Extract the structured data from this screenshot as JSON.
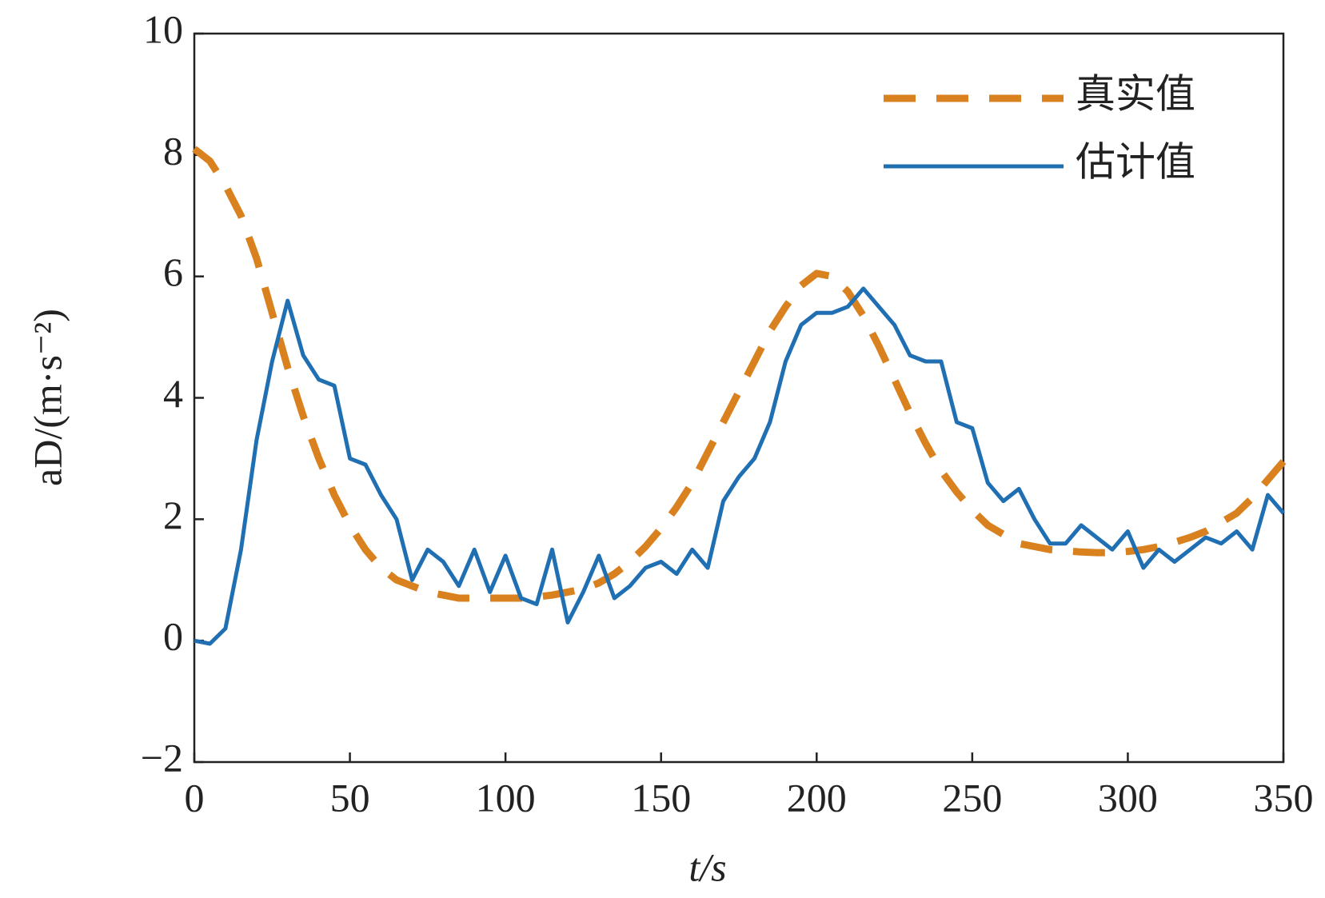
{
  "chart_data": {
    "type": "line",
    "xlabel": "t/s",
    "ylabel": "aD/(m·s⁻²)",
    "x": [
      0,
      5,
      10,
      15,
      20,
      25,
      30,
      35,
      40,
      45,
      50,
      55,
      60,
      65,
      70,
      75,
      80,
      85,
      90,
      95,
      100,
      105,
      110,
      115,
      120,
      125,
      130,
      135,
      140,
      145,
      150,
      155,
      160,
      165,
      170,
      175,
      180,
      185,
      190,
      195,
      200,
      205,
      210,
      215,
      220,
      225,
      230,
      235,
      240,
      245,
      250,
      255,
      260,
      265,
      270,
      275,
      280,
      285,
      290,
      295,
      300,
      305,
      310,
      315,
      320,
      325,
      330,
      335,
      340,
      345,
      350
    ],
    "series": [
      {
        "name": "真实值",
        "color": "#d9811e",
        "dashed": true,
        "values": [
          8.1,
          7.9,
          7.5,
          7.0,
          6.3,
          5.4,
          4.5,
          3.7,
          3.0,
          2.4,
          1.9,
          1.5,
          1.2,
          1.0,
          0.9,
          0.8,
          0.75,
          0.7,
          0.7,
          0.7,
          0.7,
          0.7,
          0.72,
          0.75,
          0.8,
          0.85,
          0.95,
          1.1,
          1.3,
          1.55,
          1.85,
          2.2,
          2.6,
          3.1,
          3.6,
          4.1,
          4.6,
          5.1,
          5.5,
          5.85,
          6.05,
          6.0,
          5.75,
          5.35,
          4.85,
          4.3,
          3.75,
          3.25,
          2.8,
          2.45,
          2.15,
          1.9,
          1.75,
          1.6,
          1.55,
          1.5,
          1.48,
          1.46,
          1.45,
          1.45,
          1.47,
          1.5,
          1.55,
          1.62,
          1.7,
          1.8,
          1.95,
          2.1,
          2.35,
          2.65,
          2.95
        ]
      },
      {
        "name": "估计值",
        "color": "#1f6fb2",
        "dashed": false,
        "values": [
          0,
          -0.05,
          0.2,
          1.5,
          3.3,
          4.6,
          5.6,
          4.7,
          4.3,
          4.2,
          3.0,
          2.9,
          2.4,
          2.0,
          1.0,
          1.5,
          1.3,
          0.9,
          1.5,
          0.8,
          1.4,
          0.7,
          0.6,
          1.5,
          0.3,
          0.8,
          1.4,
          0.7,
          0.9,
          1.2,
          1.3,
          1.1,
          1.5,
          1.2,
          2.3,
          2.7,
          3.0,
          3.6,
          4.6,
          5.2,
          5.4,
          5.4,
          5.5,
          5.8,
          5.5,
          5.2,
          4.7,
          4.6,
          4.6,
          3.6,
          3.5,
          2.6,
          2.3,
          2.5,
          2.0,
          1.6,
          1.6,
          1.9,
          1.7,
          1.5,
          1.8,
          1.2,
          1.5,
          1.3,
          1.5,
          1.7,
          1.6,
          1.8,
          1.5,
          2.4,
          2.1
        ]
      }
    ],
    "xlim": [
      0,
      350
    ],
    "xticks": [
      0,
      50,
      100,
      150,
      200,
      250,
      300,
      350
    ],
    "ylim": [
      -2,
      10
    ],
    "yticks": [
      {
        "value": -2,
        "label": "−2"
      },
      0,
      2,
      4,
      6,
      8,
      10
    ],
    "grid": false,
    "legend": "upper right"
  }
}
